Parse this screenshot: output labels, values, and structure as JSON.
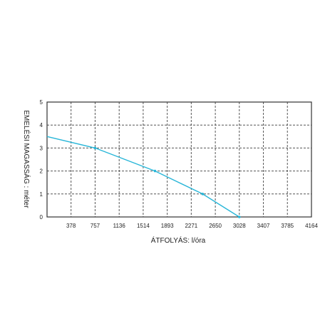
{
  "chart_data": {
    "type": "line",
    "title": "",
    "xlabel": "ÁTFOLYÁS: l/óra",
    "ylabel": "EMELÉSI MAGASSÁG : méter",
    "x_ticks": [
      0,
      378,
      757,
      1136,
      1514,
      1893,
      2271,
      2650,
      3028,
      3407,
      3785,
      4164
    ],
    "x_tick_labels": [
      "",
      "378",
      "757",
      "1136",
      "1514",
      "1893",
      "2271",
      "2650",
      "3028",
      "3407",
      "3785",
      "4164"
    ],
    "y_ticks": [
      0,
      1,
      2,
      3,
      4,
      5
    ],
    "y_tick_labels": [
      "0",
      "1",
      "2",
      "3",
      "4",
      "5"
    ],
    "xlim": [
      0,
      4164
    ],
    "ylim": [
      0,
      5
    ],
    "grid": true,
    "grid_style": "dashed",
    "legend": "none",
    "series": [
      {
        "x": [
          0,
          757,
          1700,
          2450,
          3028
        ],
        "y": [
          3.5,
          3.0,
          2.0,
          1.0,
          0.0
        ],
        "color": "#29b6d8"
      }
    ]
  }
}
